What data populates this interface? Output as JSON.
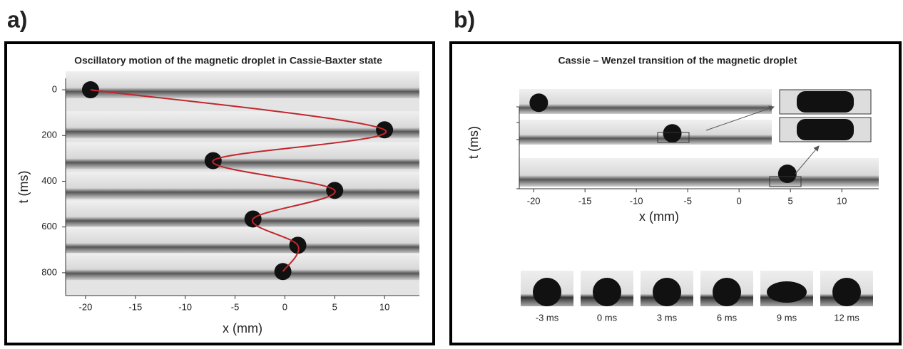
{
  "chart_data": [
    {
      "type": "line",
      "panel_label": "a)",
      "title": "Oscillatory motion of the magnetic droplet in Cassie-Baxter state",
      "xlabel": "x (mm)",
      "ylabel": "t (ms)",
      "xlim": [
        -22,
        13.5
      ],
      "xticks": [
        -20,
        -15,
        -10,
        -5,
        0,
        5,
        10
      ],
      "ylim": [
        900,
        -50
      ],
      "yticks": [
        0,
        200,
        400,
        600,
        800
      ],
      "series": [
        {
          "color": "#c0272d",
          "x": [
            -19.5,
            10,
            -7.2,
            5,
            -3.2,
            1.3,
            -0.2
          ],
          "values": [
            0,
            175,
            310,
            440,
            565,
            680,
            795
          ]
        }
      ]
    },
    {
      "type": "strip",
      "panel_label": "b)",
      "title": "Cassie – Wenzel transition of the magnetic droplet",
      "xlabel": "x (mm)",
      "ylabel": "t (ms)",
      "xlim": [
        -21.4,
        13.6
      ],
      "xticks": [
        -20,
        -15,
        -10,
        -5,
        0,
        5,
        10
      ],
      "droplet_x": [
        -19.5,
        -6.5,
        4.7
      ],
      "frames": [
        "-3 ms",
        "0 ms",
        "3 ms",
        "6 ms",
        "9 ms",
        "12 ms"
      ]
    }
  ]
}
